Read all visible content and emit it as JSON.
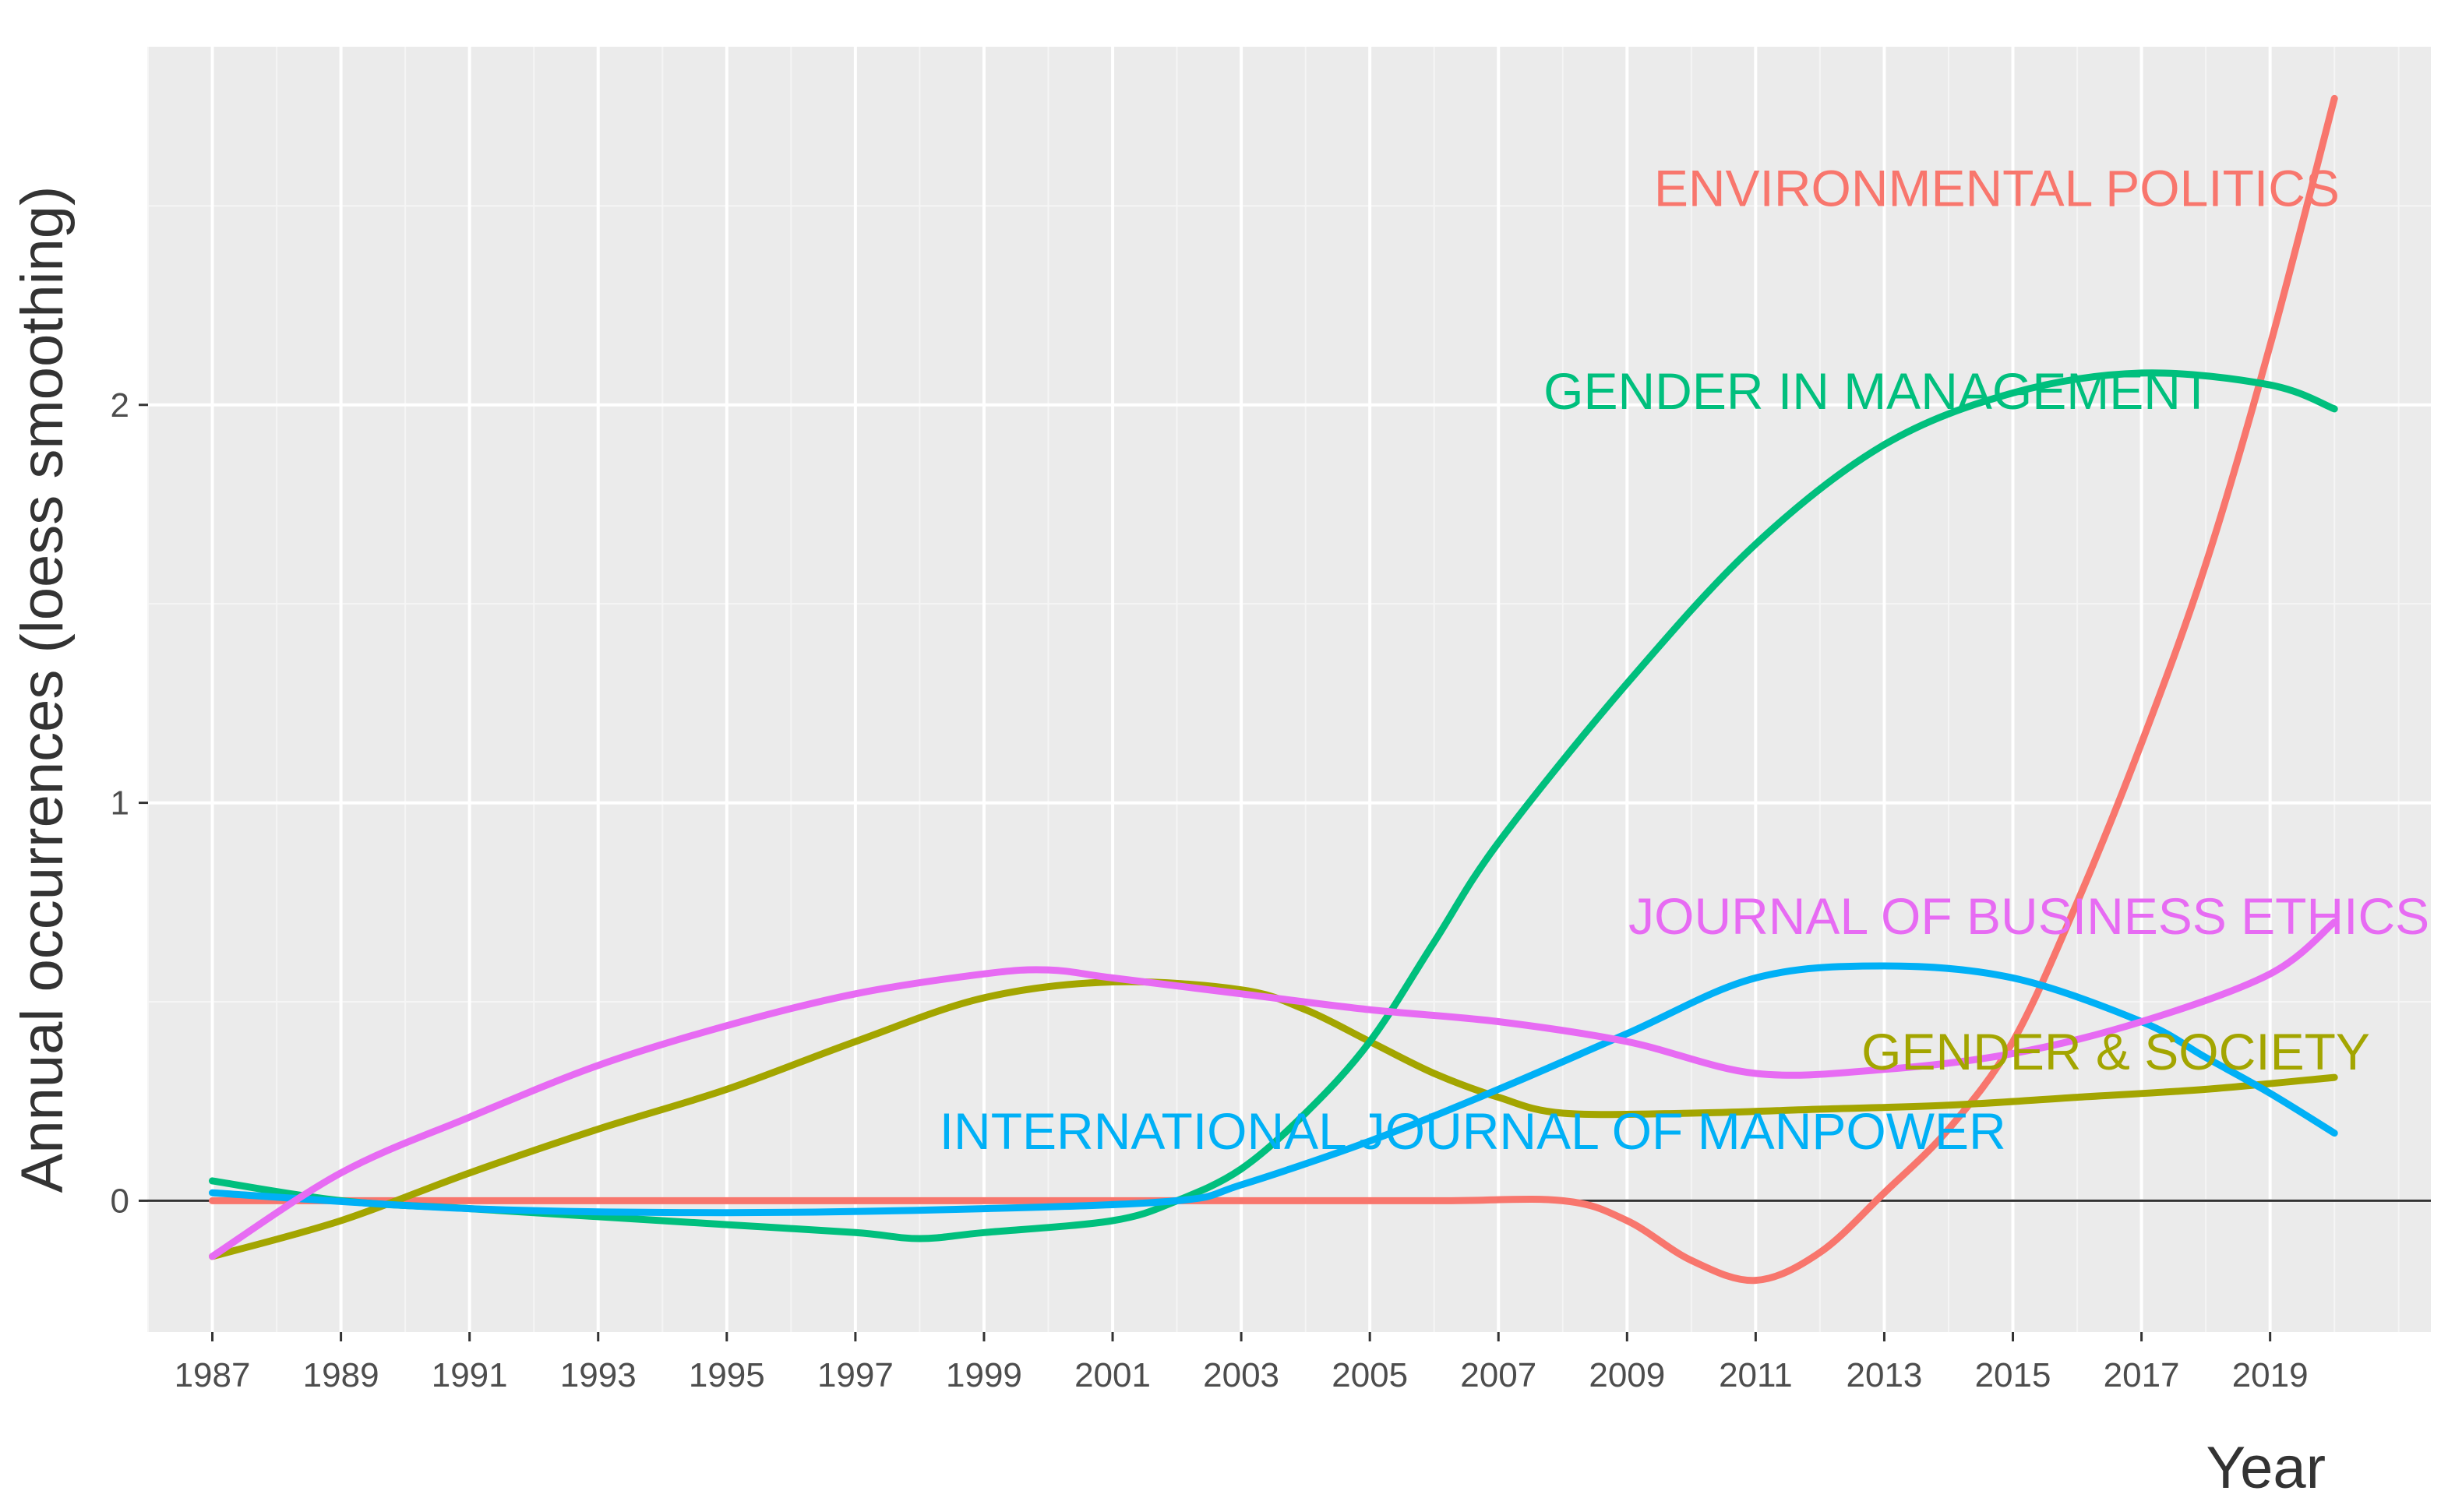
{
  "chart_data": {
    "type": "line",
    "xlabel": "Year",
    "ylabel": "Annual occurrences (loess smoothing)",
    "xlim": [
      1986,
      2021.5
    ],
    "ylim": [
      -0.33,
      2.9
    ],
    "x_ticks": [
      1987,
      1989,
      1991,
      1993,
      1995,
      1997,
      1999,
      2001,
      2003,
      2005,
      2007,
      2009,
      2011,
      2013,
      2015,
      2017,
      2019
    ],
    "x_tick_labels": [
      "1987",
      "1989",
      "1991",
      "1993",
      "1995",
      "1997",
      "1999",
      "2001",
      "2003",
      "2005",
      "2007",
      "2009",
      "2011",
      "2013",
      "2015",
      "2017",
      "2019"
    ],
    "y_ticks": [
      0,
      1,
      2
    ],
    "y_tick_labels": [
      "0",
      "1",
      "2"
    ],
    "grid": true,
    "zero_line": true,
    "series": [
      {
        "name": "ENVIRONMENTAL POLITICS",
        "color": "#F8766D",
        "label_x": 2014.75,
        "label_y": 2.5,
        "label_anchor": "middle",
        "x": [
          1987,
          1990,
          1994,
          1998,
          2002,
          2006,
          2008,
          2009,
          2010,
          2011,
          2012,
          2013,
          2014,
          2015,
          2016,
          2017,
          2018,
          2019,
          2020
        ],
        "values": [
          0,
          0,
          0,
          0,
          0,
          0,
          0,
          -0.05,
          -0.15,
          -0.2,
          -0.13,
          0.02,
          0.18,
          0.4,
          0.75,
          1.15,
          1.6,
          2.15,
          2.77
        ]
      },
      {
        "name": "GENDER & SOCIETY",
        "color": "#A3A500",
        "label_x": 2016.6,
        "label_y": 0.33,
        "label_anchor": "middle",
        "x": [
          1987,
          1989,
          1991,
          1993,
          1995,
          1997,
          1999,
          2001,
          2003,
          2004,
          2005,
          2006,
          2007,
          2008,
          2010,
          2012,
          2014,
          2016,
          2018,
          2020
        ],
        "values": [
          -0.14,
          -0.05,
          0.07,
          0.18,
          0.28,
          0.4,
          0.51,
          0.55,
          0.53,
          0.48,
          0.4,
          0.32,
          0.26,
          0.22,
          0.22,
          0.23,
          0.24,
          0.26,
          0.28,
          0.31
        ]
      },
      {
        "name": "GENDER IN MANAGEMENT",
        "color": "#00BF7D",
        "label_x": 2012.9,
        "label_y": 1.99,
        "label_anchor": "middle",
        "x": [
          1987,
          1989,
          1991,
          1993,
          1995,
          1997,
          1998,
          1999,
          2001,
          2002,
          2003,
          2004,
          2005,
          2006,
          2007,
          2009,
          2011,
          2013,
          2015,
          2017,
          2019,
          2020
        ],
        "values": [
          0.05,
          0.0,
          -0.02,
          -0.04,
          -0.06,
          -0.08,
          -0.095,
          -0.08,
          -0.05,
          0.0,
          0.08,
          0.22,
          0.4,
          0.65,
          0.9,
          1.3,
          1.65,
          1.9,
          2.03,
          2.08,
          2.05,
          1.99
        ]
      },
      {
        "name": "INTERNATIONAL JOURNAL OF MANPOWER",
        "color": "#00B0F6",
        "label_x": 2006.6,
        "label_y": 0.13,
        "label_anchor": "middle",
        "x": [
          1987,
          1991,
          1995,
          1999,
          2002,
          2003,
          2005,
          2007,
          2009,
          2011,
          2013,
          2015,
          2017,
          2018,
          2019,
          2020
        ],
        "values": [
          0.02,
          -0.02,
          -0.03,
          -0.02,
          0.0,
          0.04,
          0.15,
          0.28,
          0.42,
          0.56,
          0.59,
          0.56,
          0.45,
          0.36,
          0.27,
          0.17
        ]
      },
      {
        "name": "JOURNAL OF BUSINESS ETHICS",
        "color": "#E76BF3",
        "label_x": 2015.25,
        "label_y": 0.67,
        "label_anchor": "middle",
        "x": [
          1987,
          1989,
          1991,
          1993,
          1995,
          1997,
          1999,
          2000,
          2001,
          2003,
          2005,
          2007,
          2009,
          2011,
          2013,
          2015,
          2017,
          2019,
          2020
        ],
        "values": [
          -0.14,
          0.07,
          0.21,
          0.34,
          0.44,
          0.52,
          0.57,
          0.58,
          0.56,
          0.52,
          0.48,
          0.45,
          0.4,
          0.32,
          0.33,
          0.37,
          0.45,
          0.57,
          0.7
        ]
      }
    ]
  }
}
